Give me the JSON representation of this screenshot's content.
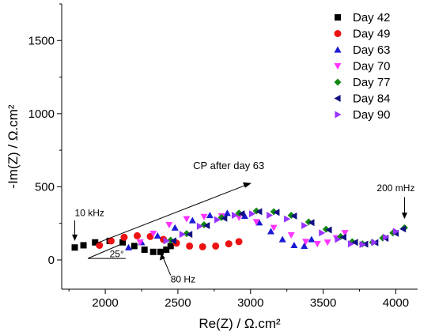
{
  "chart_data": {
    "type": "scatter",
    "title": "",
    "xlabel": "Re(Z) / Ω.cm²",
    "ylabel": "-Im(Z) / Ω.cm²",
    "xlim": [
      1700,
      4150
    ],
    "ylim": [
      -200,
      1750
    ],
    "xticks": [
      2000,
      2500,
      3000,
      3500,
      4000
    ],
    "yticks": [
      0,
      500,
      1000,
      1500
    ],
    "xtick_labels": [
      "2000",
      "2500",
      "3000",
      "3500",
      "4000"
    ],
    "ytick_labels": [
      "0",
      "500",
      "1000",
      "1500"
    ],
    "grid": false,
    "legend_position": "top-right",
    "series": [
      {
        "name": "Day 42",
        "color": "#000000",
        "marker": "square",
        "x": [
          1790,
          1850,
          1930,
          2030,
          2120,
          2200,
          2270,
          2330,
          2380,
          2420,
          2450
        ],
        "y": [
          85,
          100,
          120,
          130,
          120,
          95,
          70,
          55,
          55,
          70,
          95
        ]
      },
      {
        "name": "Day 49",
        "color": "#ee1111",
        "marker": "circle",
        "x": [
          1960,
          2040,
          2130,
          2220,
          2310,
          2400,
          2490,
          2580,
          2670,
          2760,
          2850,
          2920
        ],
        "y": [
          100,
          130,
          155,
          165,
          160,
          140,
          115,
          95,
          90,
          95,
          110,
          125
        ]
      },
      {
        "name": "Day 63",
        "color": "#1a1ad6",
        "marker": "triangle-up",
        "x": [
          2160,
          2250,
          2360,
          2480,
          2600,
          2720,
          2840,
          2960,
          3060,
          3140,
          3220,
          3300,
          3370,
          3420
        ],
        "y": [
          85,
          120,
          165,
          220,
          270,
          305,
          320,
          300,
          255,
          195,
          140,
          100,
          95,
          140
        ]
      },
      {
        "name": "Day 70",
        "color": "#ff33ff",
        "marker": "triangle-down",
        "x": [
          2240,
          2330,
          2440,
          2560,
          2680,
          2800,
          2920,
          3040,
          3160,
          3280,
          3380,
          3460,
          3530,
          3590,
          3650
        ],
        "y": [
          120,
          180,
          240,
          280,
          295,
          300,
          290,
          260,
          220,
          170,
          125,
          110,
          120,
          150,
          185
        ]
      },
      {
        "name": "Day 77",
        "color": "#118811",
        "marker": "diamond",
        "x": [
          2450,
          2560,
          2680,
          2800,
          2920,
          3040,
          3160,
          3280,
          3400,
          3520,
          3620,
          3700,
          3770,
          3840,
          3910,
          3980,
          4060
        ],
        "y": [
          135,
          180,
          240,
          290,
          320,
          335,
          330,
          305,
          260,
          210,
          160,
          125,
          110,
          120,
          150,
          185,
          220
        ]
      },
      {
        "name": "Day 84",
        "color": "#101080",
        "marker": "triangle-left",
        "x": [
          2470,
          2580,
          2700,
          2820,
          2940,
          3060,
          3180,
          3300,
          3420,
          3540,
          3640,
          3720,
          3790,
          3860,
          3930,
          4000,
          4050
        ],
        "y": [
          130,
          175,
          235,
          285,
          315,
          330,
          325,
          300,
          255,
          205,
          155,
          120,
          108,
          118,
          148,
          182,
          212
        ]
      },
      {
        "name": "Day 90",
        "color": "#9933ff",
        "marker": "triangle-right",
        "x": [
          2420,
          2530,
          2650,
          2770,
          2890,
          3010,
          3130,
          3250,
          3370,
          3490,
          3600,
          3690,
          3770,
          3850,
          3930,
          4000
        ],
        "y": [
          130,
          175,
          230,
          275,
          305,
          315,
          305,
          280,
          235,
          185,
          140,
          110,
          105,
          120,
          155,
          195
        ]
      }
    ],
    "annotations": [
      {
        "text": "10 kHz",
        "x": 1790,
        "y": 300
      },
      {
        "text": "80 Hz",
        "x": 2480,
        "y": -150
      },
      {
        "text": "200 mHz",
        "x": 4000,
        "y": 470
      },
      {
        "text": "CP after day 63",
        "x": 2850,
        "y": 620
      },
      {
        "text": "25°",
        "x": 2060,
        "y": 20
      }
    ]
  }
}
